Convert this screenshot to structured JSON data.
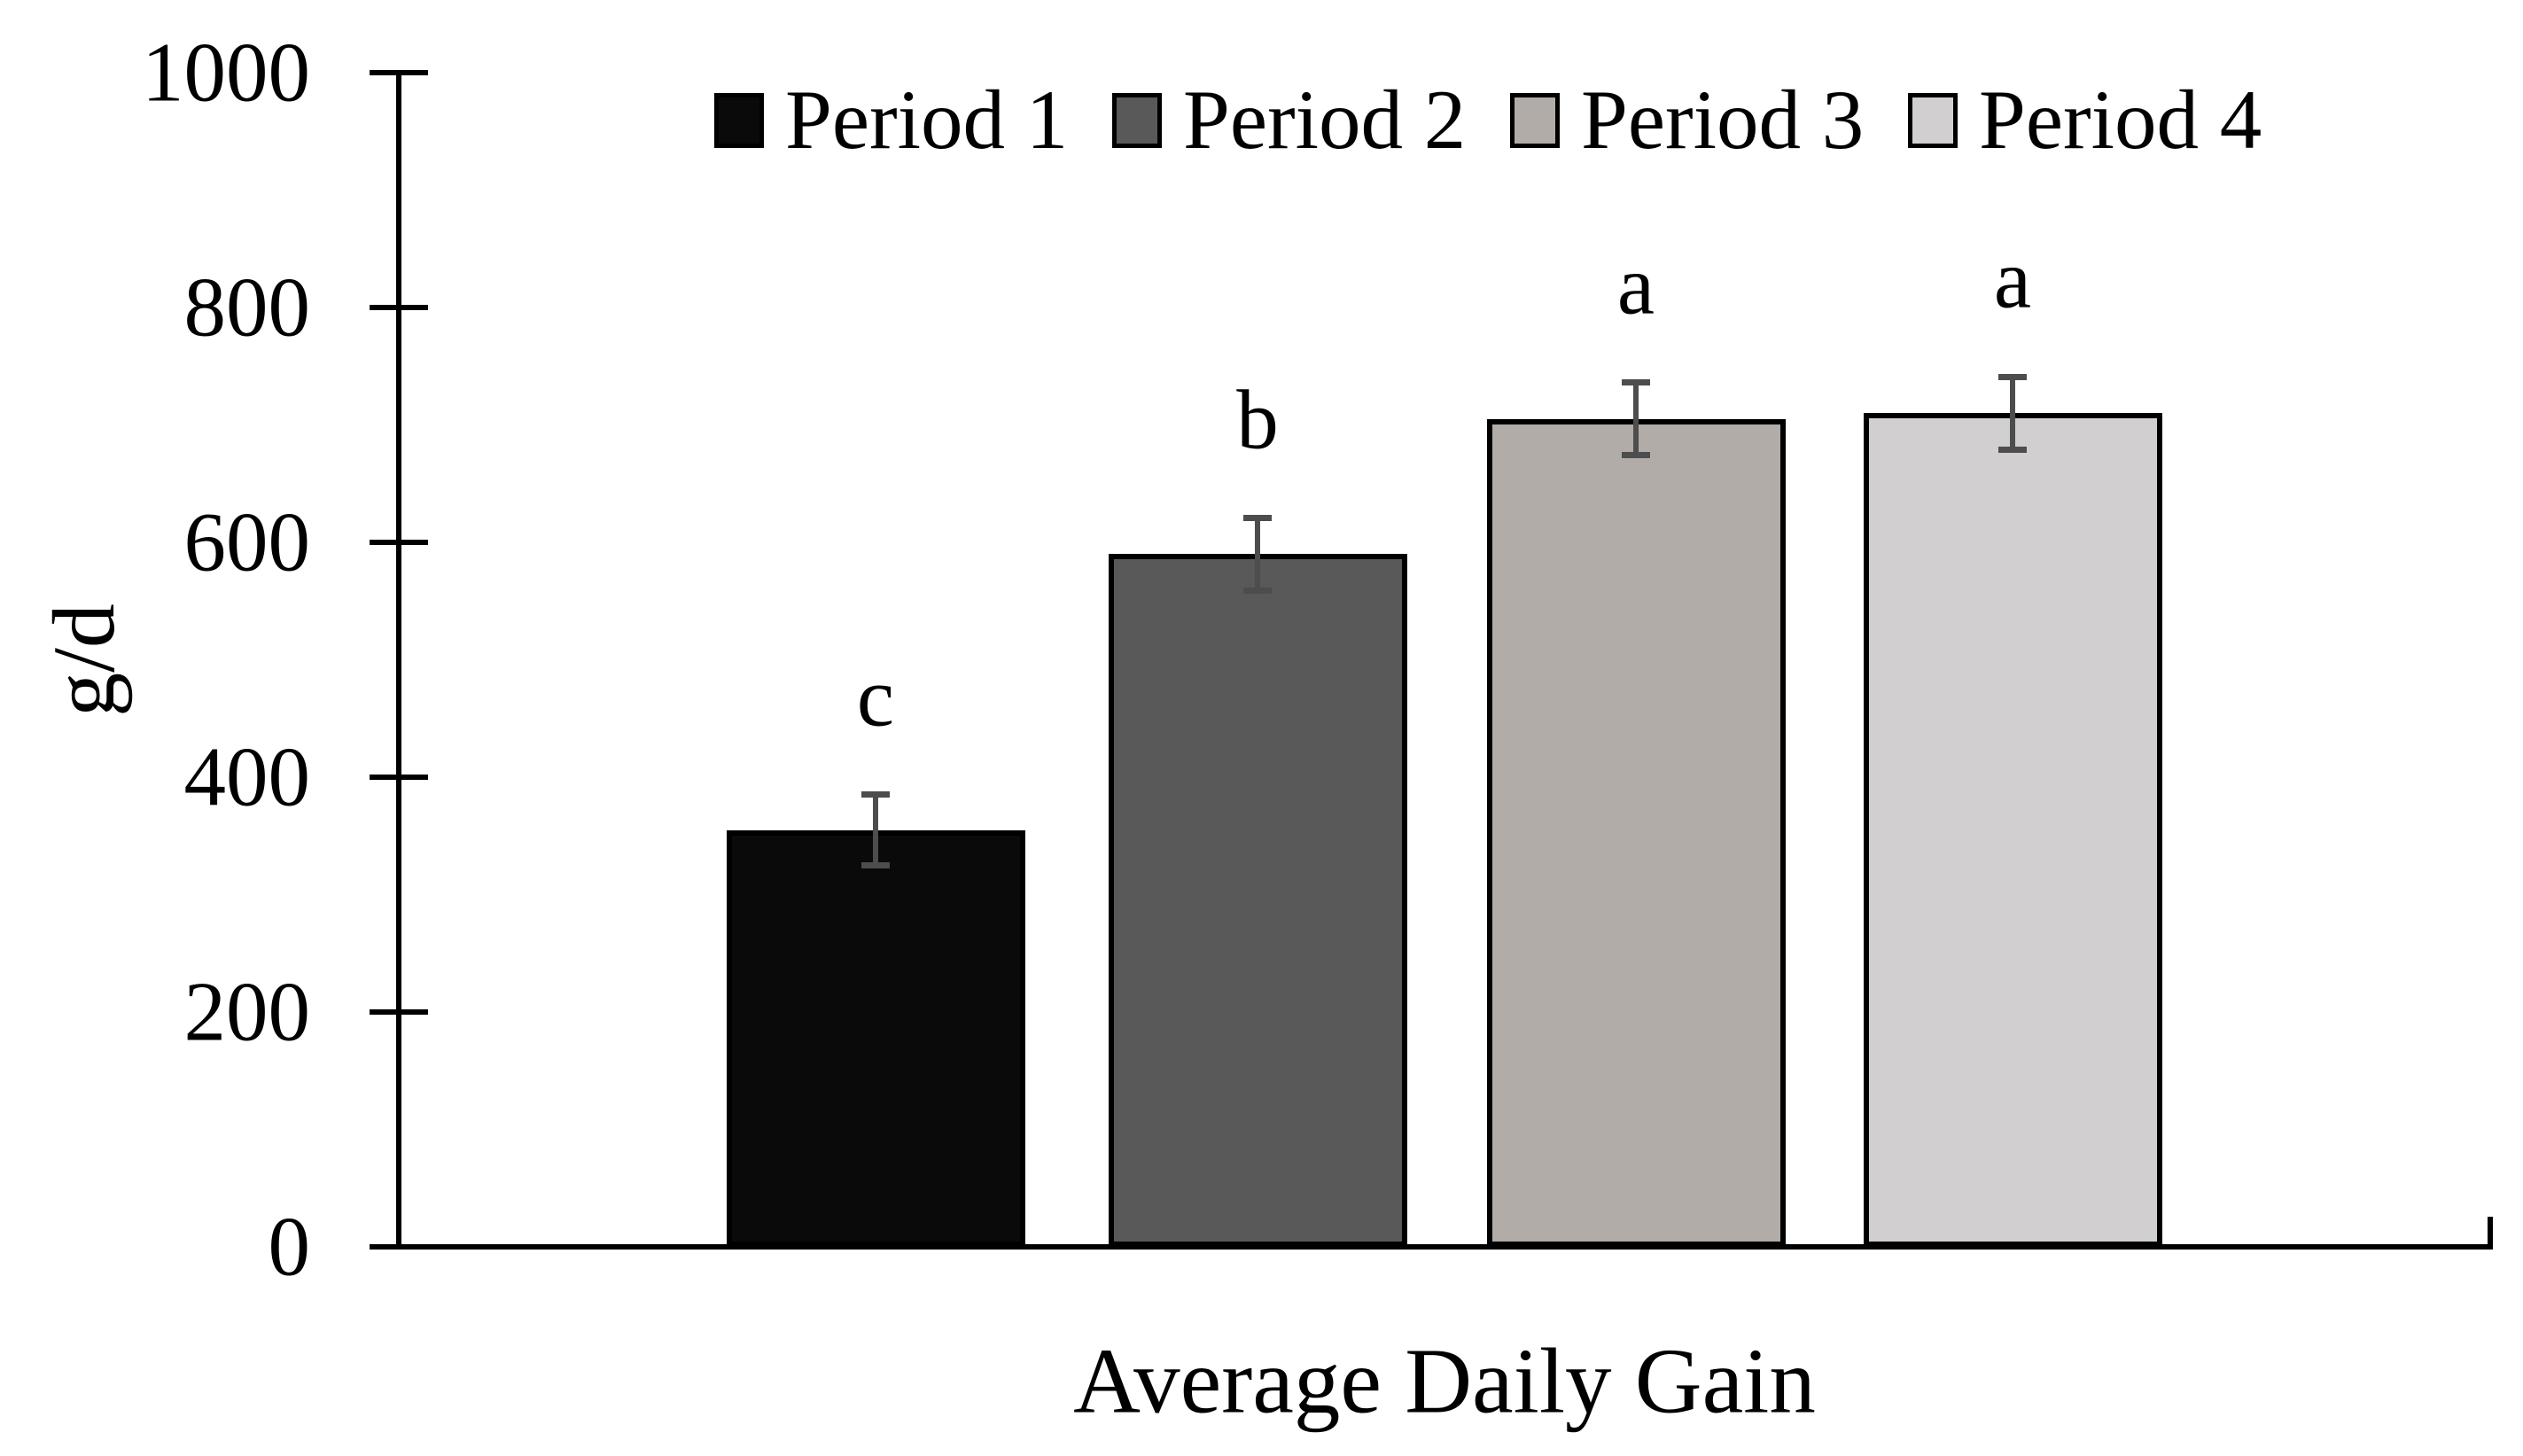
{
  "chart_data": {
    "type": "bar",
    "title": "",
    "categories": [
      "Period 1",
      "Period 2",
      "Period 3",
      "Period 4"
    ],
    "values": [
      355,
      590,
      705,
      710
    ],
    "errors": [
      30,
      31,
      31,
      31
    ],
    "significance_letters": [
      "c",
      "b",
      "a",
      "a"
    ],
    "bar_colors": [
      "#0a0a0a",
      "#595959",
      "#b1aca8",
      "#d1cfcf"
    ],
    "error_bar_color": "#4d4d4d",
    "xlabel": "Average Daily Gain",
    "ylabel": "g/d",
    "ylim": [
      0,
      1000
    ],
    "yticks": [
      0,
      200,
      400,
      600,
      800,
      1000
    ],
    "grid": false,
    "legend_position": "top-center",
    "legend": [
      "Period 1",
      "Period 2",
      "Period 3",
      "Period 4"
    ]
  }
}
